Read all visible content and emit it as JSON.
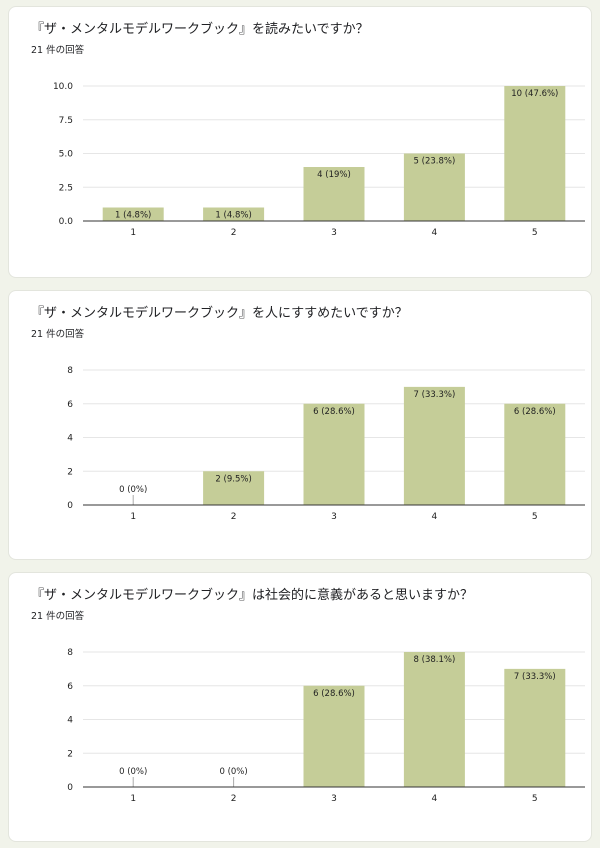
{
  "chart_data": [
    {
      "type": "bar",
      "title": "『ザ・メンタルモデルワークブック』を読みたいですか？",
      "subtitle": "21 件の回答",
      "categories": [
        "1",
        "2",
        "3",
        "4",
        "5"
      ],
      "values": [
        1,
        1,
        4,
        5,
        10
      ],
      "bar_labels": [
        "1 (4.8%)",
        "1 (4.8%)",
        "4 (19%)",
        "5 (23.8%)",
        "10 (47.6%)"
      ],
      "yticks": [
        "0.0",
        "2.5",
        "5.0",
        "7.5",
        "10.0"
      ],
      "ylim": [
        0,
        10
      ],
      "grid": true,
      "bar_color": "#c5cd98"
    },
    {
      "type": "bar",
      "title": "『ザ・メンタルモデルワークブック』を人にすすめたいですか？",
      "subtitle": "21 件の回答",
      "categories": [
        "1",
        "2",
        "3",
        "4",
        "5"
      ],
      "values": [
        0,
        2,
        6,
        7,
        6
      ],
      "bar_labels": [
        "0 (0%)",
        "2 (9.5%)",
        "6 (28.6%)",
        "7 (33.3%)",
        "6 (28.6%)"
      ],
      "yticks": [
        "0",
        "2",
        "4",
        "6",
        "8"
      ],
      "ylim": [
        0,
        8
      ],
      "grid": true,
      "bar_color": "#c5cd98"
    },
    {
      "type": "bar",
      "title": "『ザ・メンタルモデルワークブック』は社会的に意義があると思いますか？",
      "subtitle": "21 件の回答",
      "categories": [
        "1",
        "2",
        "3",
        "4",
        "5"
      ],
      "values": [
        0,
        0,
        6,
        8,
        7
      ],
      "bar_labels": [
        "0 (0%)",
        "0 (0%)",
        "6 (28.6%)",
        "8 (38.1%)",
        "7 (33.3%)"
      ],
      "yticks": [
        "0",
        "2",
        "4",
        "6",
        "8"
      ],
      "ylim": [
        0,
        8
      ],
      "grid": true,
      "bar_color": "#c5cd98"
    }
  ]
}
